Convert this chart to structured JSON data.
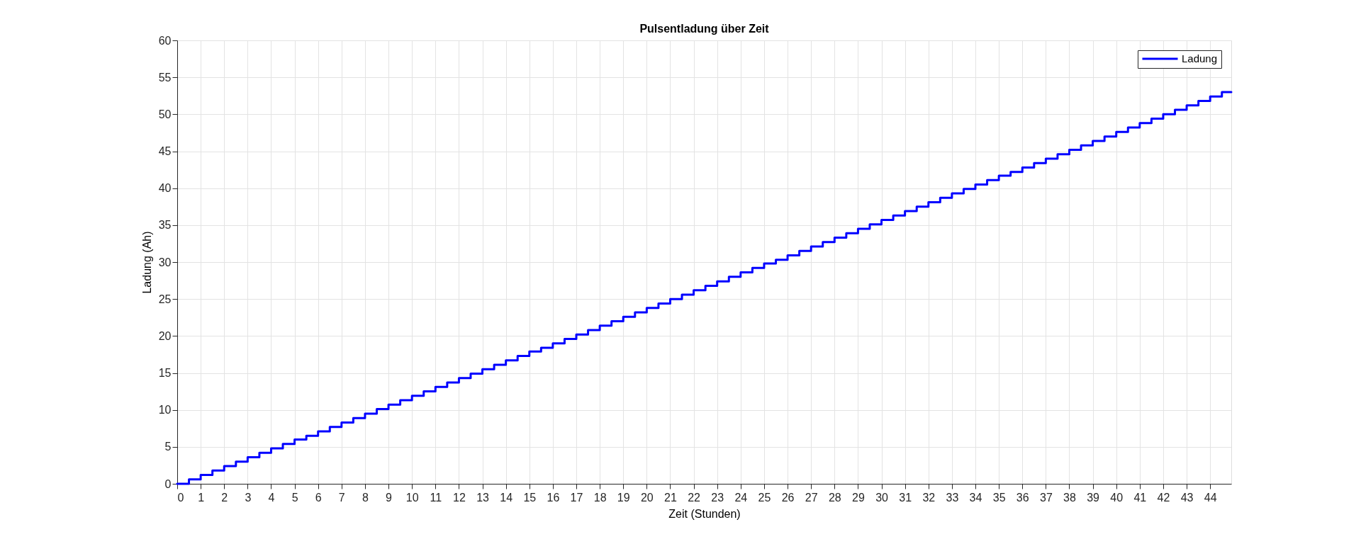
{
  "chart_data": {
    "type": "step",
    "title": "Pulsentladung über Zeit",
    "xlabel": "Zeit (Stunden)",
    "ylabel": "Ladung (Ah)",
    "x": [
      0,
      0.5,
      1,
      1.5,
      2,
      2.5,
      3,
      3.5,
      4,
      4.5,
      5,
      5.5,
      6,
      6.5,
      7,
      7.5,
      8,
      8.5,
      9,
      9.5,
      10,
      10.5,
      11,
      11.5,
      12,
      12.5,
      13,
      13.5,
      14,
      14.5,
      15,
      15.5,
      16,
      16.5,
      17,
      17.5,
      18,
      18.5,
      19,
      19.5,
      20,
      20.5,
      21,
      21.5,
      22,
      22.5,
      23,
      23.5,
      24,
      24.5,
      25,
      25.5,
      26,
      26.5,
      27,
      27.5,
      28,
      28.5,
      29,
      29.5,
      30,
      30.5,
      31,
      31.5,
      32,
      32.5,
      33,
      33.5,
      34,
      34.5,
      35,
      35.5,
      36,
      36.5,
      37,
      37.5,
      38,
      38.5,
      39,
      39.5,
      40,
      40.5,
      41,
      41.5,
      42,
      42.5,
      43,
      43.5,
      44,
      44.5,
      44.9
    ],
    "series": [
      {
        "name": "Ladung",
        "color": "#0000ff",
        "values": [
          0,
          0.6,
          1.2,
          1.8,
          2.4,
          3.0,
          3.6,
          4.2,
          4.8,
          5.4,
          6.0,
          6.5,
          7.1,
          7.7,
          8.3,
          8.9,
          9.5,
          10.1,
          10.7,
          11.3,
          11.9,
          12.5,
          13.1,
          13.7,
          14.3,
          14.9,
          15.5,
          16.1,
          16.7,
          17.3,
          17.9,
          18.4,
          19.0,
          19.6,
          20.2,
          20.8,
          21.4,
          22.0,
          22.6,
          23.2,
          23.8,
          24.4,
          25.0,
          25.6,
          26.2,
          26.8,
          27.4,
          28.0,
          28.6,
          29.2,
          29.8,
          30.3,
          30.9,
          31.5,
          32.1,
          32.7,
          33.3,
          33.9,
          34.5,
          35.1,
          35.7,
          36.3,
          36.9,
          37.5,
          38.1,
          38.7,
          39.3,
          39.9,
          40.5,
          41.1,
          41.7,
          42.2,
          42.8,
          43.4,
          44.0,
          44.6,
          45.2,
          45.8,
          46.4,
          47.0,
          47.6,
          48.2,
          48.8,
          49.4,
          50.0,
          50.6,
          51.2,
          51.8,
          52.4,
          53.0,
          53.0
        ]
      }
    ],
    "xlim": [
      0,
      44.9
    ],
    "xticks": [
      0,
      1,
      2,
      3,
      4,
      5,
      6,
      7,
      8,
      9,
      10,
      11,
      12,
      13,
      14,
      15,
      16,
      17,
      18,
      19,
      20,
      21,
      22,
      23,
      24,
      25,
      26,
      27,
      28,
      29,
      30,
      31,
      32,
      33,
      34,
      35,
      36,
      37,
      38,
      39,
      40,
      41,
      42,
      43,
      44
    ],
    "ylim": [
      0,
      60
    ],
    "yticks": [
      0,
      5,
      10,
      15,
      20,
      25,
      30,
      35,
      40,
      45,
      50,
      55,
      60
    ],
    "grid": true,
    "legend": "top right",
    "line_style": "solid"
  }
}
